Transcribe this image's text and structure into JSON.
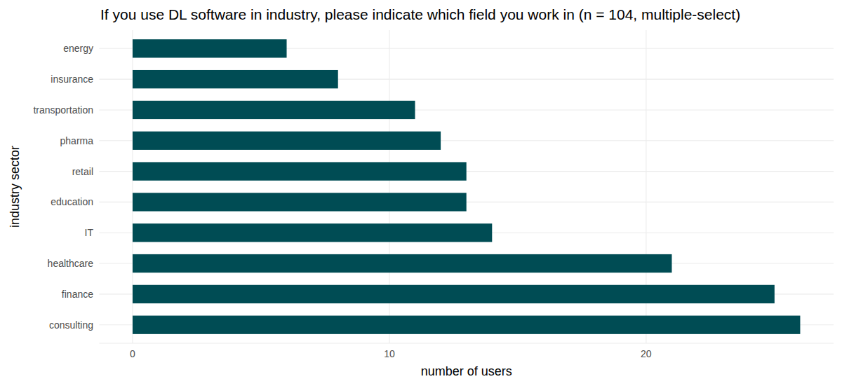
{
  "chart_data": {
    "type": "bar",
    "orientation": "horizontal",
    "title": "If you use DL software in industry, please indicate which field you work in (n = 104, multiple-select)",
    "x_label": "number of users",
    "y_label": "industry sector",
    "categories": [
      "energy",
      "insurance",
      "transportation",
      "pharma",
      "retail",
      "education",
      "IT",
      "healthcare",
      "finance",
      "consulting"
    ],
    "values": [
      6,
      8,
      11,
      12,
      13,
      13,
      14,
      21,
      25,
      26
    ],
    "color": "#004c54",
    "xlim": [
      -1.3,
      27.3
    ],
    "xticks": [
      0,
      10,
      20
    ],
    "grid": true
  }
}
